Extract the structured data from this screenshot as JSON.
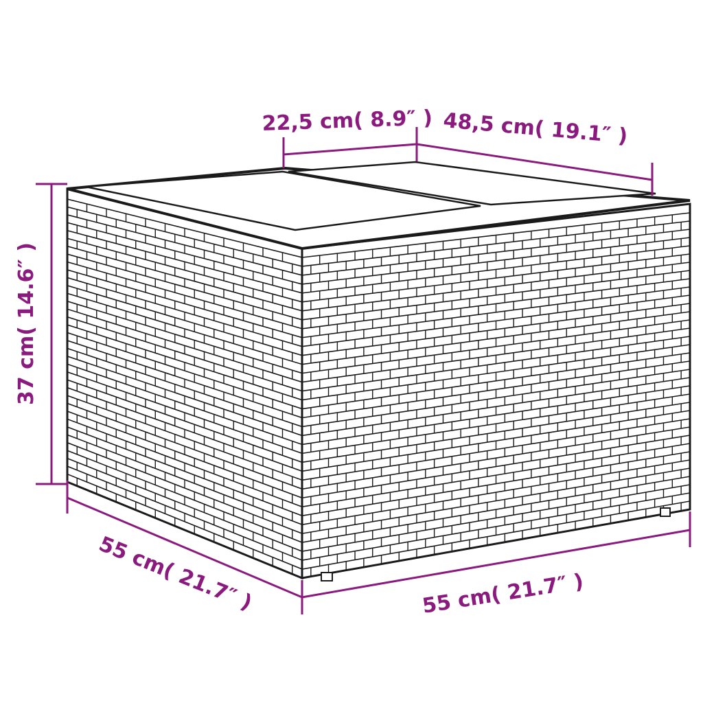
{
  "colors": {
    "dimension": "#8b1a7e",
    "outline": "#1a1a1a",
    "face": "#ffffff"
  },
  "product": "wicker storage side table with two-panel top",
  "dimensions": {
    "top_left_panel": "22,5 cm( 8.9″ )",
    "top_depth": "48,5 cm( 19.1″ )",
    "height": "37 cm( 14.6″ )",
    "depth": "55 cm( 21.7″ )",
    "width": "55 cm( 21.7″ )"
  }
}
